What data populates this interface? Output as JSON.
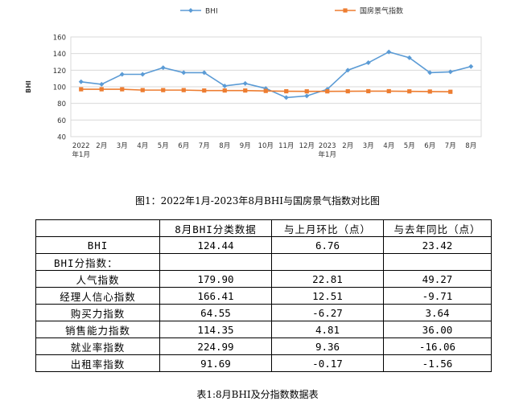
{
  "chart_data": {
    "type": "line",
    "ylabel": "BHI",
    "ylim": [
      40,
      160
    ],
    "yticks": [
      "40",
      "60",
      "80",
      "100",
      "120",
      "140",
      "160"
    ],
    "grid": true,
    "legend_position": "top",
    "x_labels": [
      [
        "2022",
        "年1月"
      ],
      [
        "2月"
      ],
      [
        "3月"
      ],
      [
        "4月"
      ],
      [
        "5月"
      ],
      [
        "6月"
      ],
      [
        "7月"
      ],
      [
        "8月"
      ],
      [
        "9月"
      ],
      [
        "10月"
      ],
      [
        "11月"
      ],
      [
        "12月"
      ],
      [
        "2023",
        "年1月"
      ],
      [
        "2月"
      ],
      [
        "3月"
      ],
      [
        "4月"
      ],
      [
        "5月"
      ],
      [
        "6月"
      ],
      [
        "7月"
      ],
      [
        "8月"
      ]
    ],
    "series": [
      {
        "name": "BHI",
        "color": "#5b9bd5",
        "marker": "diamond",
        "values": [
          106,
          103,
          115,
          115,
          123,
          117,
          117,
          101,
          104,
          98,
          87,
          89,
          97,
          120,
          129,
          142,
          135,
          117,
          118,
          124.44
        ]
      },
      {
        "name": "国房景气指数",
        "color": "#ed7d31",
        "marker": "square",
        "values": [
          97,
          97,
          97,
          96,
          96,
          96,
          95.5,
          95.5,
          95.5,
          95,
          94.6,
          94.5,
          94.5,
          94.6,
          94.7,
          94.7,
          94.5,
          94.3,
          94.0,
          null
        ]
      }
    ]
  },
  "figure_caption": "图1：2022年1月-2023年8月BHI与国房景气指数对比图",
  "table": {
    "headers": [
      "",
      "8月BHI分类数据",
      "与上月环比（点）",
      "与去年同比（点）"
    ],
    "rows": [
      {
        "name": "BHI",
        "values": [
          "124.44",
          "6.76",
          "23.42"
        ]
      },
      {
        "name": "BHI分指数：",
        "section": true
      },
      {
        "name": "人气指数",
        "values": [
          "179.90",
          "22.81",
          "49.27"
        ]
      },
      {
        "name": "经理人信心指数",
        "values": [
          "166.41",
          "12.51",
          "-9.71"
        ]
      },
      {
        "name": "购买力指数",
        "values": [
          "64.55",
          "-6.27",
          "3.64"
        ]
      },
      {
        "name": "销售能力指数",
        "values": [
          "114.35",
          "4.81",
          "36.00"
        ]
      },
      {
        "name": "就业率指数",
        "values": [
          "224.99",
          "9.36",
          "-16.06"
        ]
      },
      {
        "name": "出租率指数",
        "values": [
          "91.69",
          "-0.17",
          "-1.56"
        ]
      }
    ]
  },
  "table_caption": "表1:8月BHI及分指数数据表"
}
